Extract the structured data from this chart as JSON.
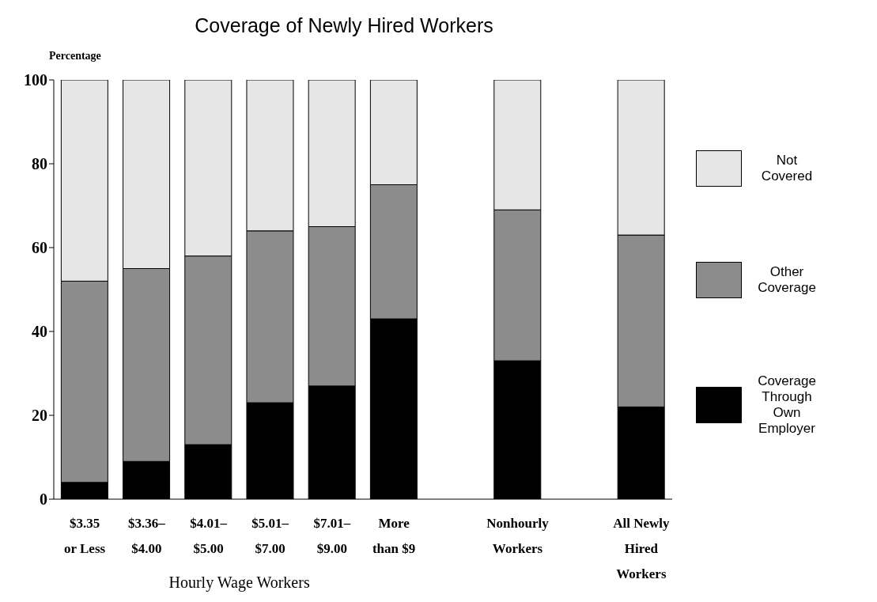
{
  "chart_data": {
    "type": "bar",
    "title": "Coverage of Newly Hired Workers",
    "ylabel": "Percentage",
    "stacked": true,
    "legend": "right",
    "grid": false,
    "categories": [
      "$3.35\nor Less",
      "$3.36–\n$4.00",
      "$4.01–\n$5.00",
      "$5.01–\n$7.00",
      "$7.01–\n$9.00",
      "More\nthan $9",
      null,
      "Nonhourly\nWorkers",
      null,
      "All Newly\nHired\nWorkers"
    ],
    "series": [
      {
        "name": "Coverage\nThrough\nOwn\nEmployer",
        "color": "#000000",
        "values": [
          4,
          9,
          13,
          23,
          27,
          43,
          null,
          33,
          null,
          22
        ]
      },
      {
        "name": "Other\nCoverage",
        "color": "#8c8c8c",
        "values": [
          48,
          46,
          45,
          41,
          38,
          32,
          null,
          36,
          null,
          41
        ]
      },
      {
        "name": "Not\nCovered",
        "color": "#e6e6e6",
        "values": [
          48,
          45,
          42,
          36,
          35,
          25,
          null,
          31,
          null,
          37
        ]
      }
    ],
    "ylim": [
      0,
      100
    ],
    "yticks": [
      0,
      20,
      40,
      60,
      80,
      100
    ],
    "annotations": [
      "Hourly Wage Workers"
    ]
  }
}
